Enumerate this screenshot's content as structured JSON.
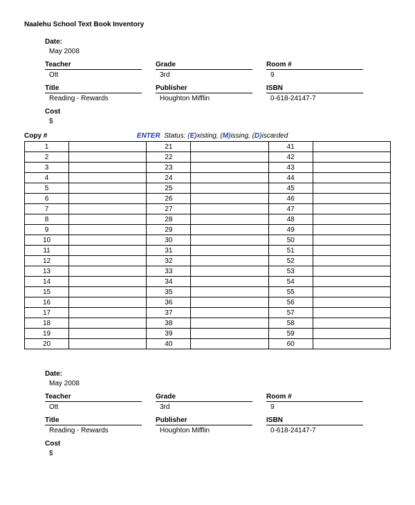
{
  "title": "Naalehu School Text Book Inventory",
  "section1": {
    "date_label": "Date:",
    "date_value": "May 2008",
    "teacher_label": "Teacher",
    "teacher_value": "Ott",
    "grade_label": "Grade",
    "grade_value": "3rd",
    "room_label": "Room #",
    "room_value": "9",
    "title_label": "Title",
    "title_value": "Reading - Rewards",
    "publisher_label": "Publisher",
    "publisher_value": "Houghton Mifflin",
    "isbn_label": "ISBN",
    "isbn_value": "0-618-24147-7",
    "cost_label": "Cost",
    "cost_value": "$"
  },
  "copy_label": "Copy #",
  "enter_label": "ENTER",
  "status_label": "Status:",
  "status_e": "E",
  "status_e_rest": "xisting,",
  "status_m": "M",
  "status_m_rest": "issing,",
  "status_d": "D",
  "status_d_rest": "iscarded",
  "col1": [
    "1",
    "2",
    "3",
    "4",
    "5",
    "6",
    "7",
    "8",
    "9",
    "10",
    "11",
    "12",
    "13",
    "14",
    "15",
    "16",
    "17",
    "18",
    "19",
    "20"
  ],
  "col2": [
    "21",
    "22",
    "23",
    "24",
    "25",
    "26",
    "27",
    "28",
    "29",
    "30",
    "31",
    "32",
    "33",
    "34",
    "35",
    "36",
    "37",
    "38",
    "39",
    "40"
  ],
  "col3": [
    "41",
    "42",
    "43",
    "44",
    "45",
    "46",
    "47",
    "48",
    "49",
    "50",
    "51",
    "52",
    "53",
    "54",
    "55",
    "56",
    "57",
    "58",
    "59",
    "60"
  ],
  "section2": {
    "date_label": "Date:",
    "date_value": "May 2008",
    "teacher_label": "Teacher",
    "teacher_value": "Ott",
    "grade_label": "Grade",
    "grade_value": "3rd",
    "room_label": "Room #",
    "room_value": "9",
    "title_label": "Title",
    "title_value": "Reading - Rewards",
    "publisher_label": "Publisher",
    "publisher_value": "Houghton Mifflin",
    "isbn_label": "ISBN",
    "isbn_value": "0-618-24147-7",
    "cost_label": "Cost",
    "cost_value": "$"
  }
}
